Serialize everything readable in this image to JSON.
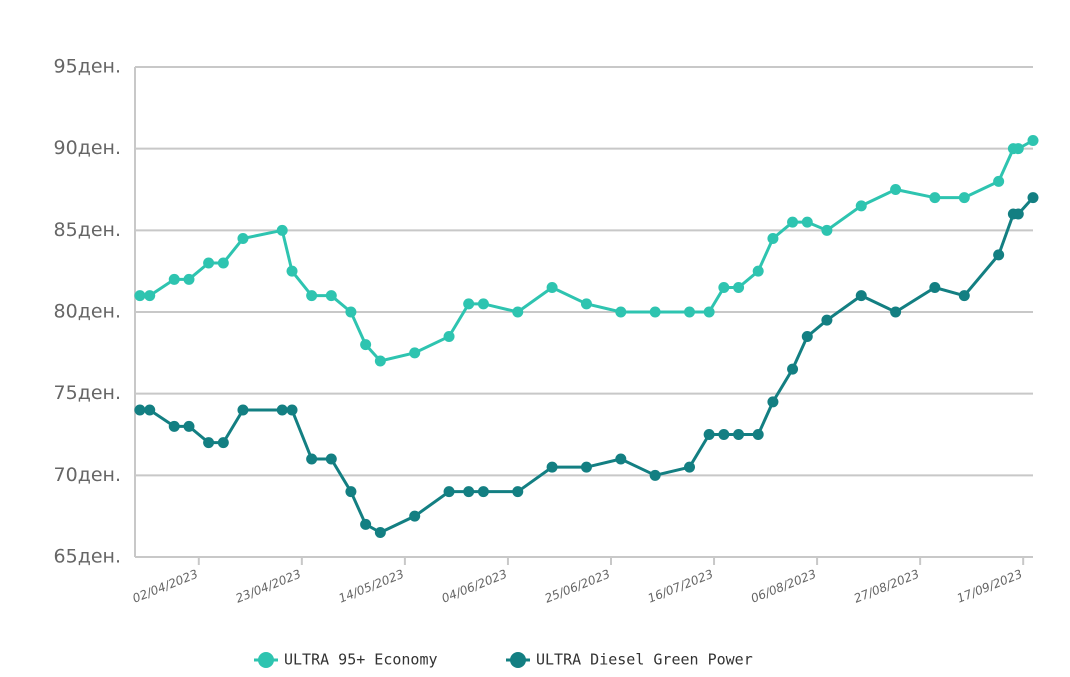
{
  "chart_data": {
    "type": "line",
    "x": [
      "21/03/2023",
      "23/03/2023",
      "28/03/2023",
      "31/03/2023",
      "04/04/2023",
      "07/04/2023",
      "11/04/2023",
      "19/04/2023",
      "21/04/2023",
      "25/04/2023",
      "29/04/2023",
      "03/05/2023",
      "06/05/2023",
      "09/05/2023",
      "16/05/2023",
      "23/05/2023",
      "27/05/2023",
      "30/05/2023",
      "06/06/2023",
      "13/06/2023",
      "20/06/2023",
      "27/06/2023",
      "04/07/2023",
      "11/07/2023",
      "15/07/2023",
      "18/07/2023",
      "21/07/2023",
      "25/07/2023",
      "28/07/2023",
      "01/08/2023",
      "04/08/2023",
      "08/08/2023",
      "15/08/2023",
      "22/08/2023",
      "30/08/2023",
      "05/09/2023",
      "12/09/2023",
      "15/09/2023",
      "16/09/2023",
      "19/09/2023"
    ],
    "series": [
      {
        "name": "ULTRA 95+ Economy",
        "color": "#2ec4b0",
        "values": [
          81,
          81,
          82,
          82,
          83,
          83,
          84.5,
          85,
          82.5,
          81,
          81,
          80,
          78,
          77,
          77.5,
          78.5,
          80.5,
          80.5,
          80,
          81.5,
          80.5,
          80,
          80,
          80,
          80,
          81.5,
          81.5,
          82.5,
          84.5,
          85.5,
          85.5,
          85,
          86.5,
          87.5,
          87,
          87,
          88,
          90,
          90,
          90.5
        ]
      },
      {
        "name": "ULTRA Diesel Green Power",
        "color": "#137f82",
        "values": [
          74,
          74,
          73,
          73,
          72,
          72,
          74,
          74,
          74,
          71,
          71,
          69,
          67,
          66.5,
          67.5,
          69,
          69,
          69,
          69,
          70.5,
          70.5,
          71,
          70,
          70.5,
          72.5,
          72.5,
          72.5,
          72.5,
          74.5,
          76.5,
          78.5,
          79.5,
          81,
          80,
          81.5,
          81,
          83.5,
          86,
          86,
          87
        ]
      }
    ],
    "xlim": [
      "20/03/2023",
      "19/09/2023"
    ],
    "xticks": [
      "02/04/2023",
      "23/04/2023",
      "14/05/2023",
      "04/06/2023",
      "25/06/2023",
      "16/07/2023",
      "06/08/2023",
      "27/08/2023",
      "17/09/2023"
    ],
    "ylim": [
      65,
      95
    ],
    "yticks": [
      {
        "value": 65,
        "label": "65ден."
      },
      {
        "value": 70,
        "label": "70ден."
      },
      {
        "value": 75,
        "label": "75ден."
      },
      {
        "value": 80,
        "label": "80ден."
      },
      {
        "value": 85,
        "label": "85ден."
      },
      {
        "value": 90,
        "label": "90ден."
      },
      {
        "value": 95,
        "label": "95ден."
      }
    ],
    "grid": true,
    "legend": "bottom"
  }
}
